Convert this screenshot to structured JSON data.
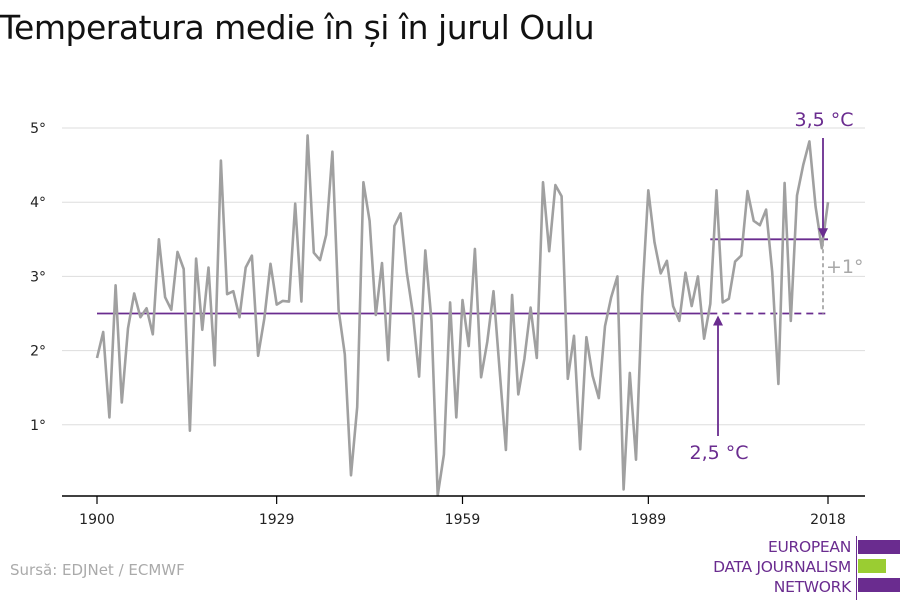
{
  "title": "Temperatura medie în și în jurul Oulu",
  "source": "Sursă: EDJNet / ECMWF",
  "logo": {
    "lines": [
      "EUROPEAN",
      "DATA JOURNALISM",
      "NETWORK"
    ],
    "colors": {
      "purple": "#6a2c8f",
      "green": "#9acd32"
    }
  },
  "colors": {
    "series": "#a0a0a0",
    "reference": "#6a2c8f",
    "grid": "#dddddd",
    "axis": "#000000",
    "diff": "#a8a8a8"
  },
  "chart_data": {
    "type": "line",
    "title": "Temperatura medie în și în jurul Oulu",
    "xlabel": "",
    "ylabel": "",
    "xlim": [
      1900,
      2018
    ],
    "ylim": [
      0,
      5
    ],
    "grid": true,
    "x_ticks": [
      1900,
      1929,
      1959,
      1989,
      2018
    ],
    "x_tick_labels": [
      "1900",
      "1929",
      "1959",
      "1989",
      "2018"
    ],
    "y_ticks": [
      1,
      2,
      3,
      4,
      5
    ],
    "y_tick_labels": [
      "1°",
      "2°",
      "3°",
      "4°",
      "5°"
    ],
    "series": [
      {
        "x": [
          1900,
          1901,
          1902,
          1903,
          1904,
          1905,
          1906,
          1907,
          1908,
          1909,
          1910,
          1911,
          1912,
          1913,
          1914,
          1915,
          1916,
          1917,
          1918,
          1919,
          1920,
          1921,
          1922,
          1923,
          1924,
          1925,
          1926,
          1927,
          1928,
          1929,
          1930,
          1931,
          1932,
          1933,
          1934,
          1935,
          1936,
          1937,
          1938,
          1939,
          1940,
          1941,
          1942,
          1943,
          1944,
          1945,
          1946,
          1947,
          1948,
          1949,
          1950,
          1951,
          1952,
          1953,
          1954,
          1955,
          1956,
          1957,
          1958,
          1959,
          1960,
          1961,
          1962,
          1963,
          1964,
          1965,
          1966,
          1967,
          1968,
          1969,
          1970,
          1971,
          1972,
          1973,
          1974,
          1975,
          1976,
          1977,
          1978,
          1979,
          1980,
          1981,
          1982,
          1983,
          1984,
          1985,
          1986,
          1987,
          1988,
          1989,
          1990,
          1991,
          1992,
          1993,
          1994,
          1995,
          1996,
          1997,
          1998,
          1999,
          2000,
          2001,
          2002,
          2003,
          2004,
          2005,
          2006,
          2007,
          2008,
          2009,
          2010,
          2011,
          2012,
          2013,
          2014,
          2015,
          2016,
          2017,
          2018
        ],
        "values": [
          1.9,
          2.25,
          1.1,
          2.88,
          1.3,
          2.3,
          2.77,
          2.45,
          2.57,
          2.22,
          3.5,
          2.72,
          2.55,
          3.33,
          3.1,
          0.92,
          3.24,
          2.28,
          3.12,
          1.8,
          4.56,
          2.76,
          2.8,
          2.45,
          3.12,
          3.28,
          1.93,
          2.43,
          3.17,
          2.62,
          2.67,
          2.66,
          3.98,
          2.66,
          4.9,
          3.32,
          3.22,
          3.56,
          4.68,
          2.55,
          1.95,
          0.32,
          1.24,
          4.27,
          3.75,
          2.48,
          3.18,
          1.87,
          3.68,
          3.85,
          3.06,
          2.5,
          1.65,
          3.35,
          2.4,
          0.05,
          0.6,
          2.65,
          1.1,
          2.68,
          2.06,
          3.37,
          1.64,
          2.12,
          2.8,
          1.72,
          0.66,
          2.75,
          1.41,
          1.89,
          2.58,
          1.9,
          4.27,
          3.34,
          4.23,
          4.08,
          1.62,
          2.2,
          0.67,
          2.18,
          1.66,
          1.36,
          2.33,
          2.72,
          3.0,
          0.13,
          1.7,
          0.53,
          2.73,
          4.16,
          3.46,
          3.04,
          3.21,
          2.6,
          2.4,
          3.05,
          2.6,
          3.0,
          2.16,
          2.63,
          4.16,
          2.65,
          2.7,
          3.2,
          3.28,
          4.15,
          3.75,
          3.69,
          3.9,
          3.06,
          1.55,
          4.26,
          2.4,
          4.09,
          4.5,
          4.82,
          3.94,
          3.38,
          4.0
        ]
      }
    ],
    "reference_lines": [
      {
        "value": 2.5,
        "x_from": 1900,
        "x_to": 2018,
        "label": "2,5 °C"
      },
      {
        "value": 3.5,
        "x_from": 1999,
        "x_to": 2018,
        "label": "3,5 °C"
      }
    ],
    "difference_label": "+1°"
  }
}
